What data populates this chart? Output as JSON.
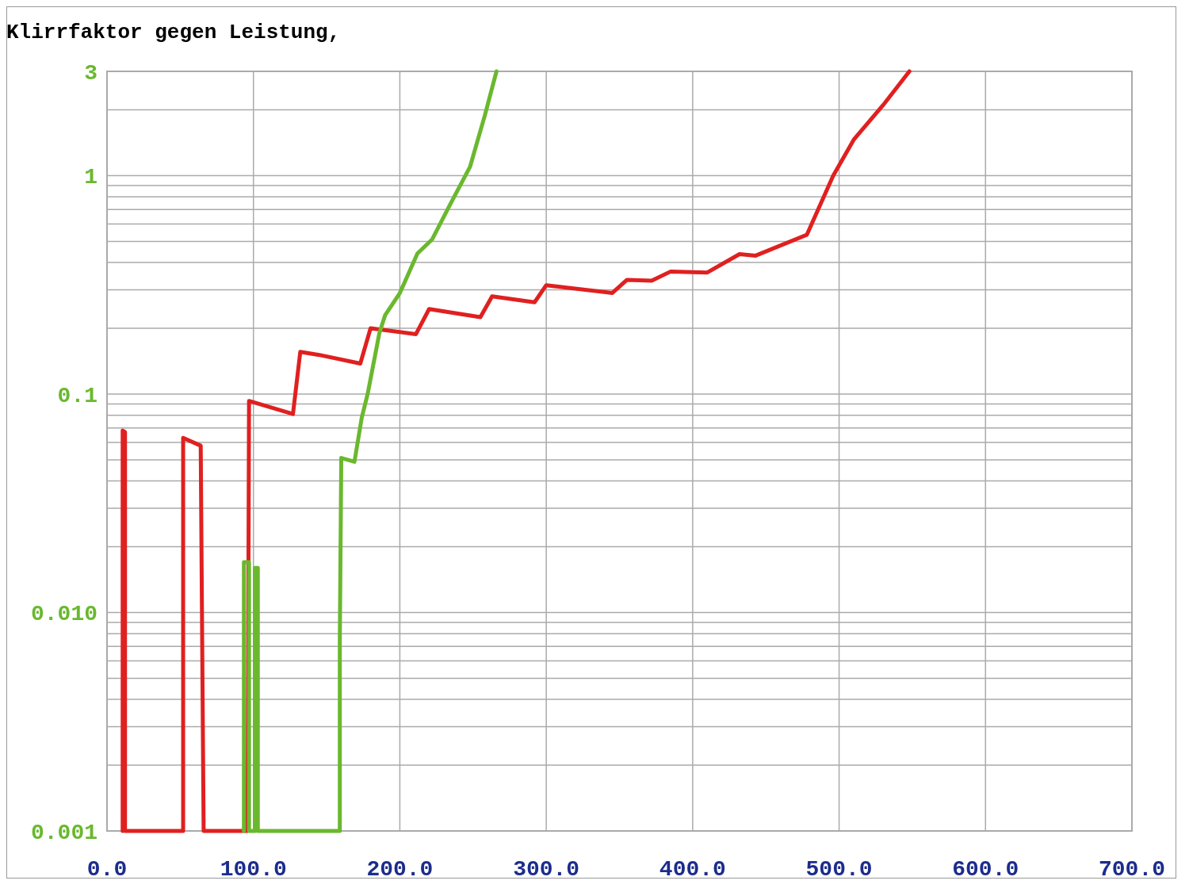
{
  "chart_data": {
    "type": "line",
    "title": "Klirrfaktor gegen Leistung,",
    "log": "y",
    "grid": true,
    "line_style": "solid",
    "xlim": [
      0,
      700
    ],
    "xticks": [
      {
        "value": 0,
        "label": "0.0"
      },
      {
        "value": 100,
        "label": "100.0"
      },
      {
        "value": 200,
        "label": "200.0"
      },
      {
        "value": 300,
        "label": "300.0"
      },
      {
        "value": 400,
        "label": "400.0"
      },
      {
        "value": 500,
        "label": "500.0"
      },
      {
        "value": 600,
        "label": "600.0"
      },
      {
        "value": 700,
        "label": "700.0"
      }
    ],
    "ylim": [
      0.001,
      3
    ],
    "yticks": [
      {
        "value": 0.001,
        "label": "0.001"
      },
      {
        "value": 0.002,
        "label": null
      },
      {
        "value": 0.003,
        "label": null
      },
      {
        "value": 0.004,
        "label": null
      },
      {
        "value": 0.005,
        "label": null
      },
      {
        "value": 0.006,
        "label": null
      },
      {
        "value": 0.007,
        "label": null
      },
      {
        "value": 0.008,
        "label": null
      },
      {
        "value": 0.009,
        "label": null
      },
      {
        "value": 0.01,
        "label": "0.010"
      },
      {
        "value": 0.02,
        "label": null
      },
      {
        "value": 0.03,
        "label": null
      },
      {
        "value": 0.04,
        "label": null
      },
      {
        "value": 0.05,
        "label": null
      },
      {
        "value": 0.06,
        "label": null
      },
      {
        "value": 0.07,
        "label": null
      },
      {
        "value": 0.08,
        "label": null
      },
      {
        "value": 0.09,
        "label": null
      },
      {
        "value": 0.1,
        "label": "0.1"
      },
      {
        "value": 0.2,
        "label": null
      },
      {
        "value": 0.3,
        "label": null
      },
      {
        "value": 0.4,
        "label": null
      },
      {
        "value": 0.5,
        "label": null
      },
      {
        "value": 0.6,
        "label": null
      },
      {
        "value": 0.7,
        "label": null
      },
      {
        "value": 0.8,
        "label": null
      },
      {
        "value": 0.9,
        "label": null
      },
      {
        "value": 1,
        "label": "1"
      },
      {
        "value": 2,
        "label": null
      },
      {
        "value": 3,
        "label": "3"
      }
    ],
    "series": [
      {
        "color": "#e02020",
        "x": [
          10.7,
          10.7,
          12.3,
          12.3,
          52,
          52,
          64,
          65,
          66,
          96,
          97,
          127,
          132,
          145,
          173,
          180,
          211,
          220,
          255,
          263,
          292,
          300,
          345,
          355,
          372,
          385,
          410,
          432,
          443,
          478,
          496,
          510,
          530,
          548
        ],
        "values": [
          0.001,
          0.068,
          0.067,
          0.001,
          0.001,
          0.063,
          0.058,
          0.0074,
          0.001,
          0.001,
          0.093,
          0.081,
          0.156,
          0.151,
          0.138,
          0.2,
          0.188,
          0.245,
          0.225,
          0.28,
          0.263,
          0.315,
          0.29,
          0.333,
          0.33,
          0.364,
          0.36,
          0.437,
          0.43,
          0.536,
          1.0,
          1.46,
          2.1,
          3
        ]
      },
      {
        "color": "#6ab82e",
        "x": [
          93.5,
          93.5,
          97,
          97,
          101,
          101,
          103,
          103,
          159,
          159,
          160,
          169,
          174,
          178,
          186,
          190,
          200,
          212,
          222,
          234,
          248,
          258,
          266
        ],
        "values": [
          0.001,
          0.017,
          0.017,
          0.001,
          0.001,
          0.016,
          0.016,
          0.001,
          0.001,
          0.0075,
          0.051,
          0.049,
          0.078,
          0.1,
          0.19,
          0.23,
          0.29,
          0.44,
          0.51,
          0.73,
          1.1,
          1.88,
          3
        ]
      }
    ]
  }
}
